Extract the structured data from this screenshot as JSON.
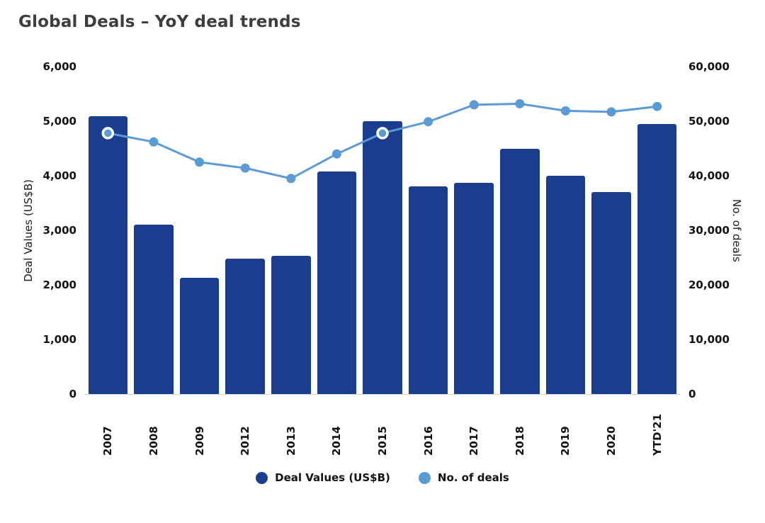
{
  "chart_data": {
    "type": "bar",
    "title": "Global Deals – YoY deal trends",
    "categories": [
      "2007",
      "2008",
      "2009",
      "2012",
      "2013",
      "2014",
      "2015",
      "2016",
      "2017",
      "2018",
      "2019",
      "2020",
      "YTD'21"
    ],
    "series": [
      {
        "name": "Deal Values (US$B)",
        "type": "bar",
        "axis": "left",
        "color": "#1b3d8f",
        "values": [
          5090,
          3100,
          2130,
          2480,
          2530,
          4080,
          5000,
          3800,
          3870,
          4490,
          4000,
          3700,
          4950
        ]
      },
      {
        "name": "No. of deals",
        "type": "line",
        "axis": "right",
        "color": "#5b9bd5",
        "values": [
          47800,
          46200,
          42500,
          41400,
          39500,
          44000,
          47800,
          49900,
          53000,
          53200,
          51900,
          51700,
          52700
        ],
        "highlight_indices": [
          0,
          6
        ]
      }
    ],
    "left_axis": {
      "label": "Deal Values (US$B)",
      "min": 0,
      "max": 6000,
      "ticks": [
        "0",
        "1,000",
        "2,000",
        "3,000",
        "4,000",
        "5,000",
        "6,000"
      ]
    },
    "right_axis": {
      "label": "No. of deals",
      "min": 0,
      "max": 60000,
      "ticks": [
        "0",
        "10,000",
        "20,000",
        "30,000",
        "40,000",
        "50,000",
        "60,000"
      ]
    },
    "legend_position": "bottom",
    "legend": [
      {
        "label": "Deal Values (US$B)",
        "color": "#1b3d8f"
      },
      {
        "label": "No. of deals",
        "color": "#5b9bd5"
      }
    ],
    "grid": false
  }
}
